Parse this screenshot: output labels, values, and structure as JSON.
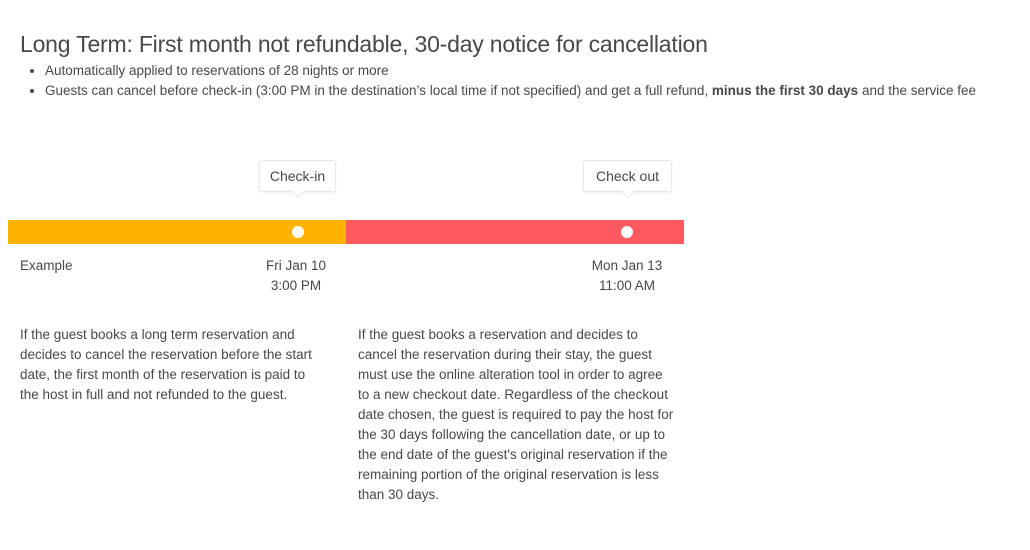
{
  "title": "Long Term: First month not refundable, 30-day notice for cancellation",
  "bullets": [
    {
      "text": "Automatically applied to reservations of 28 nights or more"
    },
    {
      "before": "Guests can cancel before check-in (3:00 PM in the destination’s local time if not specified) and get a full refund, ",
      "bold": "minus the first 30 days",
      "after": " and the service fee"
    }
  ],
  "timeline": {
    "colors": {
      "before_checkin": "#ffb400",
      "stay": "#ff5a5f",
      "marker": "#ffffff"
    },
    "checkin_tooltip": "Check-in",
    "checkout_tooltip": "Check out",
    "example_label": "Example",
    "checkin_date": "Fri Jan 10",
    "checkin_time": "3:00 PM",
    "checkout_date": "Mon Jan 13",
    "checkout_time": "11:00 AM"
  },
  "descriptions": {
    "before_checkin": "If the guest books a long term reservation and decides to cancel the reservation before the start date, the first month of the reservation is paid to the host in full and not refunded to the guest.",
    "during_stay": "If the guest books a reservation and decides to cancel the reservation during their stay, the guest must use the online alteration tool in order to agree to a new checkout date. Regardless of the checkout date chosen, the guest is required to pay the host for the 30 days following the cancellation date, or up to the end date of the guest's original reservation if the remaining portion of the original reservation is less than 30 days."
  }
}
